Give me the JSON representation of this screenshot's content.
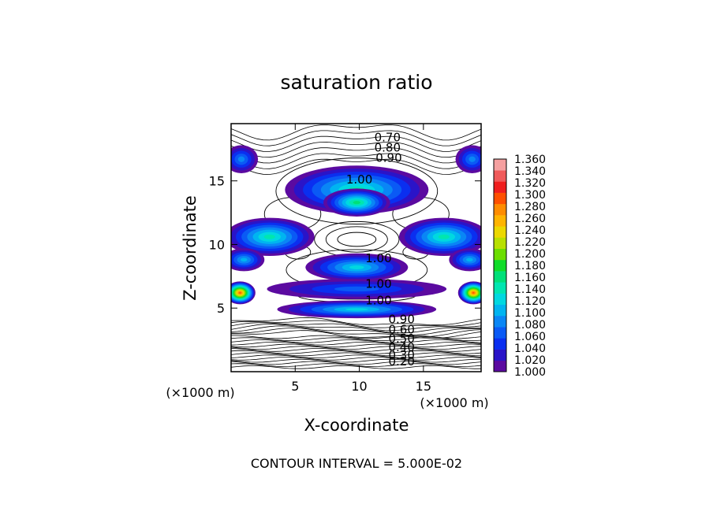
{
  "chart_data": {
    "type": "heatmap",
    "title": "saturation ratio",
    "xlabel": "X-coordinate",
    "ylabel": "Z-coordinate",
    "x_unit_left": "(×1000 m)",
    "x_unit_right": "(×1000 m)",
    "xlim": [
      0,
      19.5
    ],
    "ylim": [
      0,
      19.5
    ],
    "x_ticks": [
      5,
      10,
      15
    ],
    "y_ticks": [
      5,
      10,
      15
    ],
    "footer": "CONTOUR INTERVAL = 5.000E-02",
    "contour_labels": [
      {
        "text": "0.70",
        "x": 12.2,
        "y": 18.1
      },
      {
        "text": "0.80",
        "x": 12.2,
        "y": 17.3
      },
      {
        "text": "0.90",
        "x": 12.3,
        "y": 16.5
      },
      {
        "text": "1.00",
        "x": 10.0,
        "y": 14.8
      },
      {
        "text": "1.00",
        "x": 11.5,
        "y": 8.6
      },
      {
        "text": "1.00",
        "x": 11.5,
        "y": 6.6
      },
      {
        "text": "1.00",
        "x": 11.5,
        "y": 5.3
      },
      {
        "text": "0.90",
        "x": 13.3,
        "y": 3.8
      },
      {
        "text": "0.60",
        "x": 13.3,
        "y": 3.0
      },
      {
        "text": "0.50",
        "x": 13.3,
        "y": 2.3
      },
      {
        "text": "0.40",
        "x": 13.3,
        "y": 1.6
      },
      {
        "text": "0.30",
        "x": 13.3,
        "y": 1.0
      },
      {
        "text": "0.20",
        "x": 13.3,
        "y": 0.5
      }
    ],
    "blobs": [
      {
        "cx": 9.8,
        "cy": 14.3,
        "rx": 5.6,
        "ry": 1.9,
        "peak": 1.14
      },
      {
        "cx": 9.8,
        "cy": 13.3,
        "rx": 2.6,
        "ry": 1.1,
        "peak": 1.16
      },
      {
        "cx": 3.0,
        "cy": 10.6,
        "rx": 3.5,
        "ry": 1.5,
        "peak": 1.15
      },
      {
        "cx": 16.6,
        "cy": 10.6,
        "rx": 3.5,
        "ry": 1.5,
        "peak": 1.15
      },
      {
        "cx": 9.8,
        "cy": 8.2,
        "rx": 4.0,
        "ry": 1.1,
        "peak": 1.12
      },
      {
        "cx": 9.8,
        "cy": 6.5,
        "rx": 7.0,
        "ry": 0.8,
        "peak": 1.05
      },
      {
        "cx": 9.8,
        "cy": 4.9,
        "rx": 6.2,
        "ry": 0.7,
        "peak": 1.13
      },
      {
        "cx": 0.7,
        "cy": 6.2,
        "rx": 1.2,
        "ry": 0.9,
        "peak": 1.3
      },
      {
        "cx": 18.9,
        "cy": 6.2,
        "rx": 1.2,
        "ry": 0.9,
        "peak": 1.3
      },
      {
        "cx": 0.8,
        "cy": 16.7,
        "rx": 1.3,
        "ry": 1.1,
        "peak": 1.08
      },
      {
        "cx": 18.8,
        "cy": 16.7,
        "rx": 1.3,
        "ry": 1.1,
        "peak": 1.08
      },
      {
        "cx": 1.0,
        "cy": 8.8,
        "rx": 1.6,
        "ry": 0.9,
        "peak": 1.1
      },
      {
        "cx": 18.6,
        "cy": 8.8,
        "rx": 1.6,
        "ry": 0.9,
        "peak": 1.1
      }
    ],
    "colorbar": {
      "levels": [
        "1.000",
        "1.020",
        "1.040",
        "1.060",
        "1.080",
        "1.100",
        "1.120",
        "1.140",
        "1.160",
        "1.180",
        "1.200",
        "1.220",
        "1.240",
        "1.260",
        "1.280",
        "1.300",
        "1.320",
        "1.340",
        "1.360"
      ],
      "colors": [
        "#5b0aa0",
        "#2a14c8",
        "#0a2ff0",
        "#0a5af5",
        "#0a86f5",
        "#00b4f0",
        "#00d8e0",
        "#00e6b0",
        "#00e078",
        "#10dc28",
        "#6cde00",
        "#b8e000",
        "#ecd800",
        "#ffb400",
        "#ff8c00",
        "#ff5000",
        "#f01e1e",
        "#f05a5a",
        "#f5a0a0"
      ]
    }
  }
}
